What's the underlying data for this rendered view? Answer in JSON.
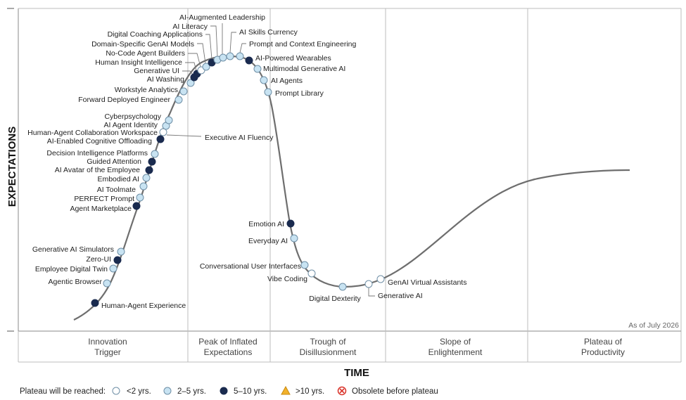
{
  "chart_data": {
    "type": "hype_cycle",
    "y_axis_label": "EXPECTATIONS",
    "x_axis_label": "TIME",
    "as_of": "As of July 2026",
    "phases": [
      {
        "name": "Innovation Trigger",
        "lines": [
          "Innovation",
          "Trigger"
        ]
      },
      {
        "name": "Peak of Inflated Expectations",
        "lines": [
          "Peak of Inflated",
          "Expectations"
        ]
      },
      {
        "name": "Trough of Disillusionment",
        "lines": [
          "Trough of",
          "Disillusionment"
        ]
      },
      {
        "name": "Slope of Enlightenment",
        "lines": [
          "Slope of",
          "Enlightenment"
        ]
      },
      {
        "name": "Plateau of Productivity",
        "lines": [
          "Plateau of",
          "Productivity"
        ]
      }
    ],
    "legend": {
      "title": "Plateau will be reached:",
      "items": [
        {
          "key": "lt2",
          "label": "<2 yrs.",
          "shape": "circle",
          "color": "#ffffff"
        },
        {
          "key": "2to5",
          "label": "2–5 yrs.",
          "shape": "circle",
          "color": "#c8e3f2"
        },
        {
          "key": "5to10",
          "label": "5–10 yrs.",
          "shape": "circle",
          "color": "#1a2b4f"
        },
        {
          "key": "gt10",
          "label": ">10 yrs.",
          "shape": "triangle",
          "color": "#f2b12a"
        },
        {
          "key": "obsolete",
          "label": "Obsolete before plateau",
          "shape": "cross",
          "color": "#d9342b"
        }
      ]
    },
    "technologies": [
      {
        "name": "Human-Agent Experience",
        "plateau": "5to10"
      },
      {
        "name": "Agentic Browser",
        "plateau": "2to5"
      },
      {
        "name": "Employee Digital Twin",
        "plateau": "2to5"
      },
      {
        "name": "Zero-UI",
        "plateau": "5to10"
      },
      {
        "name": "Generative AI Simulators",
        "plateau": "2to5"
      },
      {
        "name": "Agent Marketplace",
        "plateau": "5to10"
      },
      {
        "name": "PERFECT Prompt",
        "plateau": "2to5"
      },
      {
        "name": "AI Toolmate",
        "plateau": "2to5"
      },
      {
        "name": "Embodied AI",
        "plateau": "2to5"
      },
      {
        "name": "AI Avatar of the Employee",
        "plateau": "5to10"
      },
      {
        "name": "Guided Attention",
        "plateau": "5to10"
      },
      {
        "name": "Decision Intelligence Platforms",
        "plateau": "2to5"
      },
      {
        "name": "AI-Enabled Cognitive Offloading",
        "plateau": "5to10"
      },
      {
        "name": "Human-Agent Collaboration Workspace",
        "plateau": "lt2"
      },
      {
        "name": "Executive AI Fluency",
        "plateau": "lt2"
      },
      {
        "name": "AI Agent Identity",
        "plateau": "2to5"
      },
      {
        "name": "Cyberpsychology",
        "plateau": "2to5"
      },
      {
        "name": "Forward Deployed Engineer",
        "plateau": "2to5"
      },
      {
        "name": "Workstyle Analytics",
        "plateau": "2to5"
      },
      {
        "name": "AI Washing",
        "plateau": "2to5"
      },
      {
        "name": "Generative UI",
        "plateau": "5to10"
      },
      {
        "name": "Human Insight Intelligence",
        "plateau": "5to10"
      },
      {
        "name": "No-Code Agent Builders",
        "plateau": "lt2"
      },
      {
        "name": "Domain-Specific GenAI Models",
        "plateau": "2to5"
      },
      {
        "name": "Digital Coaching Applications",
        "plateau": "5to10"
      },
      {
        "name": "AI Literacy",
        "plateau": "2to5"
      },
      {
        "name": "AI-Augmented Leadership",
        "plateau": "2to5"
      },
      {
        "name": "AI Skills Currency",
        "plateau": "2to5"
      },
      {
        "name": "Prompt and Context Engineering",
        "plateau": "2to5"
      },
      {
        "name": "AI-Powered Wearables",
        "plateau": "5to10"
      },
      {
        "name": "Multimodal Generative AI",
        "plateau": "2to5"
      },
      {
        "name": "AI Agents",
        "plateau": "2to5"
      },
      {
        "name": "Prompt Library",
        "plateau": "2to5"
      },
      {
        "name": "Emotion AI",
        "plateau": "5to10"
      },
      {
        "name": "Everyday AI",
        "plateau": "2to5"
      },
      {
        "name": "Conversational User Interfaces",
        "plateau": "2to5"
      },
      {
        "name": "Vibe Coding",
        "plateau": "lt2"
      },
      {
        "name": "Digital Dexterity",
        "plateau": "2to5"
      },
      {
        "name": "Generative AI",
        "plateau": "lt2"
      },
      {
        "name": "GenAI Virtual Assistants",
        "plateau": "lt2"
      }
    ]
  }
}
